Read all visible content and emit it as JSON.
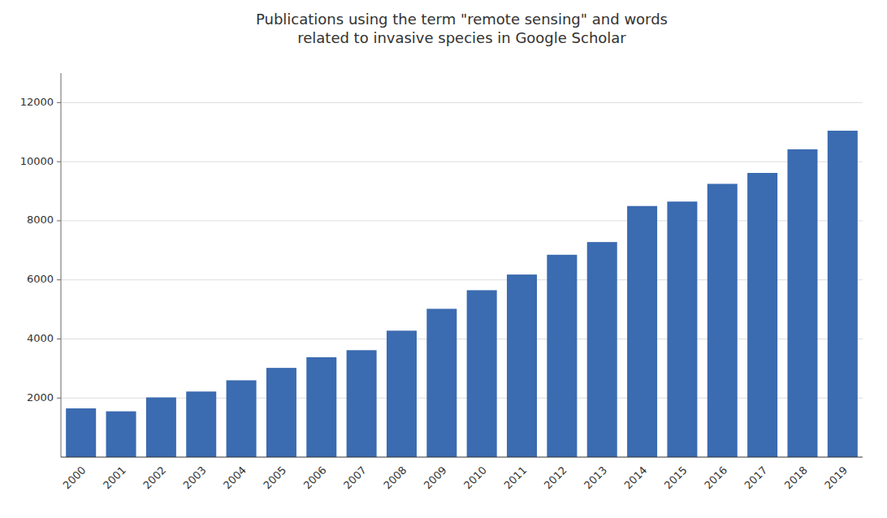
{
  "chart_data": {
    "type": "bar",
    "title": "Publications using the term \"remote sensing\" and words\nrelated to invasive species in Google Scholar",
    "categories": [
      "2000",
      "2001",
      "2002",
      "2003",
      "2004",
      "2005",
      "2006",
      "2007",
      "2008",
      "2009",
      "2010",
      "2011",
      "2012",
      "2013",
      "2014",
      "2015",
      "2016",
      "2017",
      "2018",
      "2019"
    ],
    "values": [
      1650,
      1550,
      2020,
      2220,
      2600,
      3020,
      3380,
      3620,
      4280,
      5020,
      5650,
      6180,
      6850,
      7280,
      8500,
      8650,
      9250,
      9620,
      10420,
      11050
    ],
    "color": "#3B6BB0",
    "ylim": [
      0,
      13000
    ],
    "yticks": [
      2000,
      4000,
      6000,
      8000,
      10000,
      12000
    ],
    "grid": true
  }
}
